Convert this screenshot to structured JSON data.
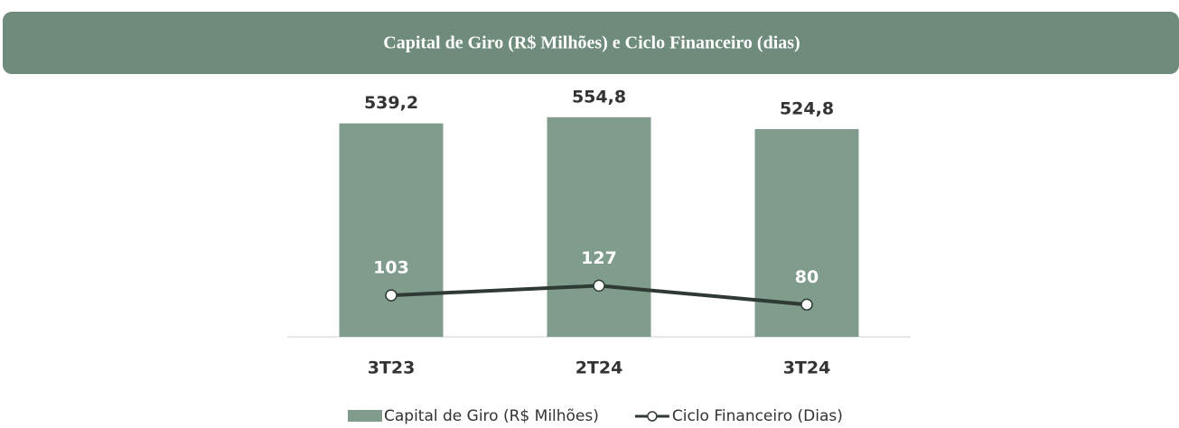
{
  "chart_data": {
    "type": "bar_line",
    "title": "Capital de Giro (R$ Milhões) e Ciclo Financeiro (dias)",
    "categories": [
      "3T23",
      "2T24",
      "3T24"
    ],
    "series": [
      {
        "name": "Capital de Giro (R$ Milhões)",
        "type": "bar",
        "color": "#7f9c8c",
        "values": [
          539.2,
          554.8,
          524.8
        ],
        "value_labels": [
          "539,2",
          "554,8",
          "524,8"
        ]
      },
      {
        "name": "Ciclo Financeiro (Dias)",
        "type": "line",
        "axis": "y2",
        "color": "#2f3a34",
        "values": [
          103,
          127,
          80
        ]
      }
    ],
    "ylim": [
      0,
      600
    ],
    "y2lim": [
      0,
      590
    ]
  }
}
